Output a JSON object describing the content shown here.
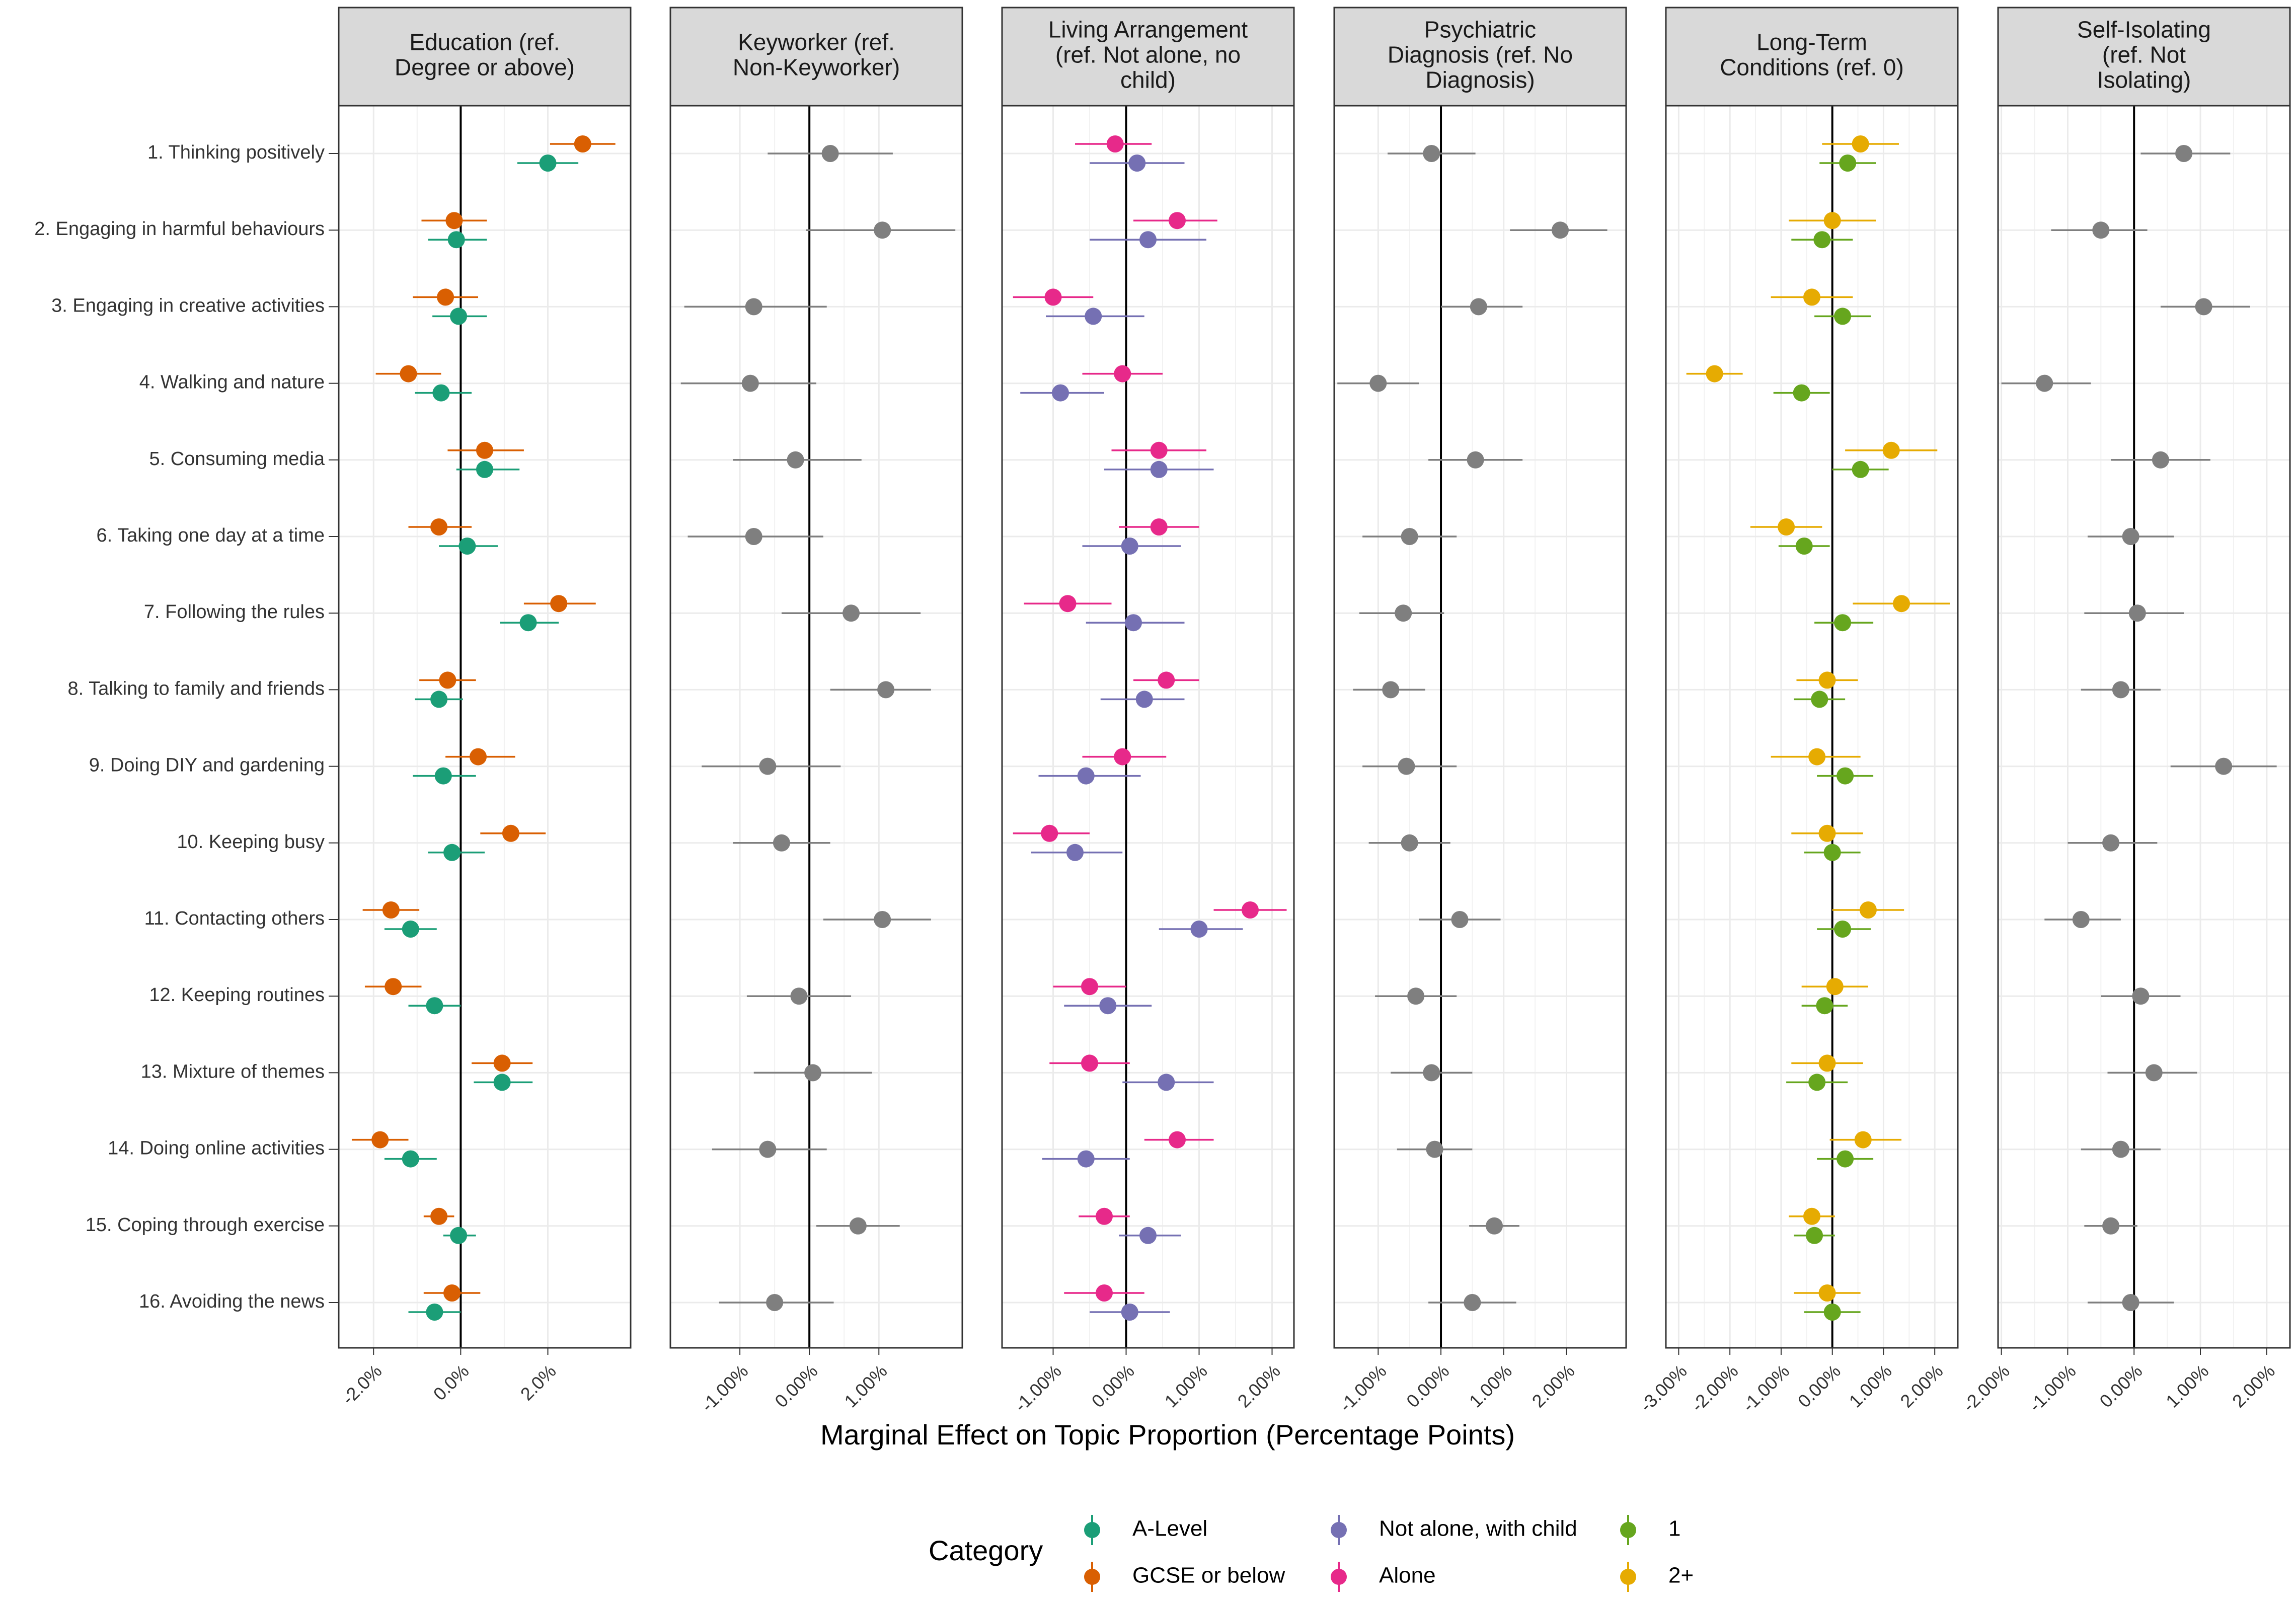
{
  "chart_data": {
    "type": "scatter",
    "subtype": "coefficient-plot-with-confidence-intervals",
    "xlabel": "Marginal Effect on Topic Proportion (Percentage Points)",
    "legend_title": "Category",
    "legend_position": "bottom",
    "grid": true,
    "colors": {
      "A-Level": "#1b9e77",
      "GCSE or below": "#d95f02",
      "Not alone, with child": "#7570b3",
      "Alone": "#e7298a",
      "1": "#66a61e",
      "2+": "#e6ab02",
      "reference": "#7f7f7f"
    },
    "legend_items": [
      {
        "label": "A-Level",
        "color": "#1b9e77"
      },
      {
        "label": "GCSE or below",
        "color": "#d95f02"
      },
      {
        "label": "Not alone, with child",
        "color": "#7570b3"
      },
      {
        "label": "Alone",
        "color": "#e7298a"
      },
      {
        "label": "1",
        "color": "#66a61e"
      },
      {
        "label": "2+",
        "color": "#e6ab02"
      }
    ],
    "topics": [
      "1. Thinking positively",
      "2. Engaging in harmful behaviours",
      "3. Engaging in creative activities",
      "4. Walking and nature",
      "5. Consuming media",
      "6. Taking one day at a time",
      "7. Following the rules",
      "8. Talking to family and friends",
      "9. Doing DIY and gardening",
      "10. Keeping busy",
      "11. Contacting others",
      "12. Keeping routines",
      "13. Mixture of themes",
      "14. Doing online activities",
      "15. Coping through exercise",
      "16. Avoiding the news"
    ],
    "panels": [
      {
        "title": "Education (ref.\nDegree or above)",
        "xlim": [
          -2.8,
          3.9
        ],
        "ticks": [
          -2,
          0,
          2
        ],
        "tick_labels": [
          "-2.0%",
          "0.0%",
          "2.0%"
        ],
        "series": [
          {
            "name": "GCSE or below",
            "offset": -1,
            "color": "#d95f02",
            "est": [
              2.8,
              -0.15,
              -0.35,
              -1.2,
              0.55,
              -0.5,
              2.25,
              -0.3,
              0.4,
              1.15,
              -1.6,
              -1.55,
              0.95,
              -1.85,
              -0.5,
              -0.2
            ],
            "lo": [
              2.05,
              -0.9,
              -1.1,
              -1.95,
              -0.3,
              -1.2,
              1.45,
              -0.95,
              -0.35,
              0.45,
              -2.25,
              -2.2,
              0.25,
              -2.5,
              -0.85,
              -0.85
            ],
            "hi": [
              3.55,
              0.6,
              0.4,
              -0.45,
              1.45,
              0.25,
              3.1,
              0.35,
              1.25,
              1.95,
              -0.95,
              -0.9,
              1.65,
              -1.2,
              -0.15,
              0.45
            ]
          },
          {
            "name": "A-Level",
            "offset": 1,
            "color": "#1b9e77",
            "est": [
              2.0,
              -0.1,
              -0.05,
              -0.45,
              0.55,
              0.15,
              1.55,
              -0.5,
              -0.4,
              -0.2,
              -1.15,
              -0.6,
              0.95,
              -1.15,
              -0.05,
              -0.6
            ],
            "lo": [
              1.3,
              -0.75,
              -0.65,
              -1.05,
              -0.1,
              -0.5,
              0.9,
              -1.05,
              -1.1,
              -0.75,
              -1.75,
              -1.2,
              0.3,
              -1.75,
              -0.4,
              -1.2
            ],
            "hi": [
              2.7,
              0.6,
              0.6,
              0.25,
              1.35,
              0.85,
              2.25,
              0.05,
              0.35,
              0.55,
              -0.55,
              0.0,
              1.65,
              -0.55,
              0.35,
              0.0
            ]
          }
        ]
      },
      {
        "title": "Keyworker (ref.\nNon-Keyworker)",
        "xlim": [
          -2.0,
          2.2
        ],
        "ticks": [
          -1,
          0,
          1
        ],
        "tick_labels": [
          "-1.00%",
          "0.00%",
          "1.00%"
        ],
        "series": [
          {
            "name": "Keyworker",
            "offset": 0,
            "color": "#7f7f7f",
            "est": [
              0.3,
              1.05,
              -0.8,
              -0.85,
              -0.2,
              -0.8,
              0.6,
              1.1,
              -0.6,
              -0.4,
              1.05,
              -0.15,
              0.05,
              -0.6,
              0.7,
              -0.5
            ],
            "lo": [
              -0.6,
              -0.05,
              -1.8,
              -1.85,
              -1.1,
              -1.75,
              -0.4,
              0.3,
              -1.55,
              -1.1,
              0.2,
              -0.9,
              -0.8,
              -1.4,
              0.1,
              -1.3
            ],
            "hi": [
              1.2,
              2.1,
              0.25,
              0.1,
              0.75,
              0.2,
              1.6,
              1.75,
              0.45,
              0.3,
              1.75,
              0.6,
              0.9,
              0.25,
              1.3,
              0.35
            ]
          }
        ]
      },
      {
        "title": "Living Arrangement\n(ref. Not alone, no\nchild)",
        "xlim": [
          -1.7,
          2.3
        ],
        "ticks": [
          -1,
          0,
          1,
          2
        ],
        "tick_labels": [
          "-1.00%",
          "0.00%",
          "1.00%",
          "2.00%"
        ],
        "series": [
          {
            "name": "Alone",
            "offset": -1,
            "color": "#e7298a",
            "est": [
              -0.15,
              0.7,
              -1.0,
              -0.05,
              0.45,
              0.45,
              -0.8,
              0.55,
              -0.05,
              -1.05,
              1.7,
              -0.5,
              -0.5,
              0.7,
              -0.3,
              -0.3
            ],
            "lo": [
              -0.7,
              0.1,
              -1.55,
              -0.6,
              -0.2,
              -0.1,
              -1.4,
              0.1,
              -0.6,
              -1.55,
              1.2,
              -1.0,
              -1.05,
              0.25,
              -0.65,
              -0.85
            ],
            "hi": [
              0.35,
              1.25,
              -0.45,
              0.5,
              1.1,
              1.0,
              -0.2,
              1.0,
              0.55,
              -0.5,
              2.2,
              0.0,
              0.05,
              1.2,
              0.05,
              0.25
            ]
          },
          {
            "name": "Not alone, with child",
            "offset": 1,
            "color": "#7570b3",
            "est": [
              0.15,
              0.3,
              -0.45,
              -0.9,
              0.45,
              0.05,
              0.1,
              0.25,
              -0.55,
              -0.7,
              1.0,
              -0.25,
              0.55,
              -0.55,
              0.3,
              0.05
            ],
            "lo": [
              -0.5,
              -0.5,
              -1.1,
              -1.45,
              -0.3,
              -0.6,
              -0.55,
              -0.35,
              -1.2,
              -1.3,
              0.45,
              -0.85,
              -0.05,
              -1.15,
              -0.1,
              -0.5
            ],
            "hi": [
              0.8,
              1.1,
              0.25,
              -0.3,
              1.2,
              0.75,
              0.8,
              0.8,
              0.2,
              -0.05,
              1.6,
              0.35,
              1.2,
              0.05,
              0.75,
              0.6
            ]
          }
        ]
      },
      {
        "title": "Psychiatric\nDiagnosis (ref. No\nDiagnosis)",
        "xlim": [
          -1.7,
          2.95
        ],
        "ticks": [
          -1,
          0,
          1,
          2
        ],
        "tick_labels": [
          "-1.00%",
          "0.00%",
          "1.00%",
          "2.00%"
        ],
        "series": [
          {
            "name": "Psychiatric diagnosis",
            "offset": 0,
            "color": "#7f7f7f",
            "est": [
              -0.15,
              1.9,
              0.6,
              -1.0,
              0.55,
              -0.5,
              -0.6,
              -0.8,
              -0.55,
              -0.5,
              0.3,
              -0.4,
              -0.15,
              -0.1,
              0.85,
              0.5
            ],
            "lo": [
              -0.85,
              1.1,
              0.0,
              -1.65,
              -0.2,
              -1.25,
              -1.3,
              -1.4,
              -1.25,
              -1.15,
              -0.35,
              -1.05,
              -0.8,
              -0.7,
              0.45,
              -0.2
            ],
            "hi": [
              0.55,
              2.65,
              1.3,
              -0.35,
              1.3,
              0.25,
              0.05,
              -0.25,
              0.25,
              0.15,
              0.95,
              0.25,
              0.5,
              0.5,
              1.25,
              1.2
            ]
          }
        ]
      },
      {
        "title": "Long-Term\nConditions (ref. 0)",
        "xlim": [
          -3.25,
          2.45
        ],
        "ticks": [
          -3,
          -2,
          -1,
          0,
          1,
          2
        ],
        "tick_labels": [
          "-3.00%",
          "-2.00%",
          "-1.00%",
          "0.00%",
          "1.00%",
          "2.00%"
        ],
        "series": [
          {
            "name": "2+",
            "offset": -1,
            "color": "#e6ab02",
            "est": [
              0.55,
              0.0,
              -0.4,
              -2.3,
              1.15,
              -0.9,
              1.35,
              -0.1,
              -0.3,
              -0.1,
              0.7,
              0.05,
              -0.1,
              0.6,
              -0.4,
              -0.1
            ],
            "lo": [
              -0.2,
              -0.85,
              -1.2,
              -2.85,
              0.25,
              -1.6,
              0.4,
              -0.7,
              -1.2,
              -0.8,
              0.0,
              -0.6,
              -0.8,
              -0.05,
              -0.85,
              -0.75
            ],
            "hi": [
              1.3,
              0.85,
              0.4,
              -1.75,
              2.05,
              -0.2,
              2.3,
              0.5,
              0.55,
              0.6,
              1.4,
              0.7,
              0.6,
              1.35,
              0.05,
              0.55
            ]
          },
          {
            "name": "1",
            "offset": 1,
            "color": "#66a61e",
            "est": [
              0.3,
              -0.2,
              0.2,
              -0.6,
              0.55,
              -0.55,
              0.2,
              -0.25,
              0.25,
              0.0,
              0.2,
              -0.15,
              -0.3,
              0.25,
              -0.35,
              0.0
            ],
            "lo": [
              -0.25,
              -0.8,
              -0.35,
              -1.15,
              0.0,
              -1.05,
              -0.35,
              -0.75,
              -0.3,
              -0.55,
              -0.3,
              -0.6,
              -0.9,
              -0.3,
              -0.75,
              -0.55
            ],
            "hi": [
              0.85,
              0.4,
              0.75,
              -0.05,
              1.1,
              -0.05,
              0.8,
              0.25,
              0.8,
              0.55,
              0.75,
              0.3,
              0.3,
              0.8,
              0.05,
              0.55
            ]
          }
        ]
      },
      {
        "title": "Self-Isolating\n(ref. Not\nIsolating)",
        "xlim": [
          -2.05,
          2.35
        ],
        "ticks": [
          -2,
          -1,
          0,
          1,
          2
        ],
        "tick_labels": [
          "-2.00%",
          "-1.00%",
          "0.00%",
          "1.00%",
          "2.00%"
        ],
        "series": [
          {
            "name": "Self-isolating",
            "offset": 0,
            "color": "#7f7f7f",
            "est": [
              0.75,
              -0.5,
              1.05,
              -1.35,
              0.4,
              -0.05,
              0.05,
              -0.2,
              1.35,
              -0.35,
              -0.8,
              0.1,
              0.3,
              -0.2,
              -0.35,
              -0.05
            ],
            "lo": [
              0.1,
              -1.25,
              0.4,
              -2.0,
              -0.35,
              -0.7,
              -0.75,
              -0.8,
              0.55,
              -1.0,
              -1.35,
              -0.5,
              -0.4,
              -0.8,
              -0.75,
              -0.7
            ],
            "hi": [
              1.45,
              0.2,
              1.75,
              -0.65,
              1.15,
              0.6,
              0.75,
              0.4,
              2.15,
              0.35,
              -0.2,
              0.7,
              0.95,
              0.4,
              0.05,
              0.6
            ]
          }
        ]
      }
    ]
  }
}
